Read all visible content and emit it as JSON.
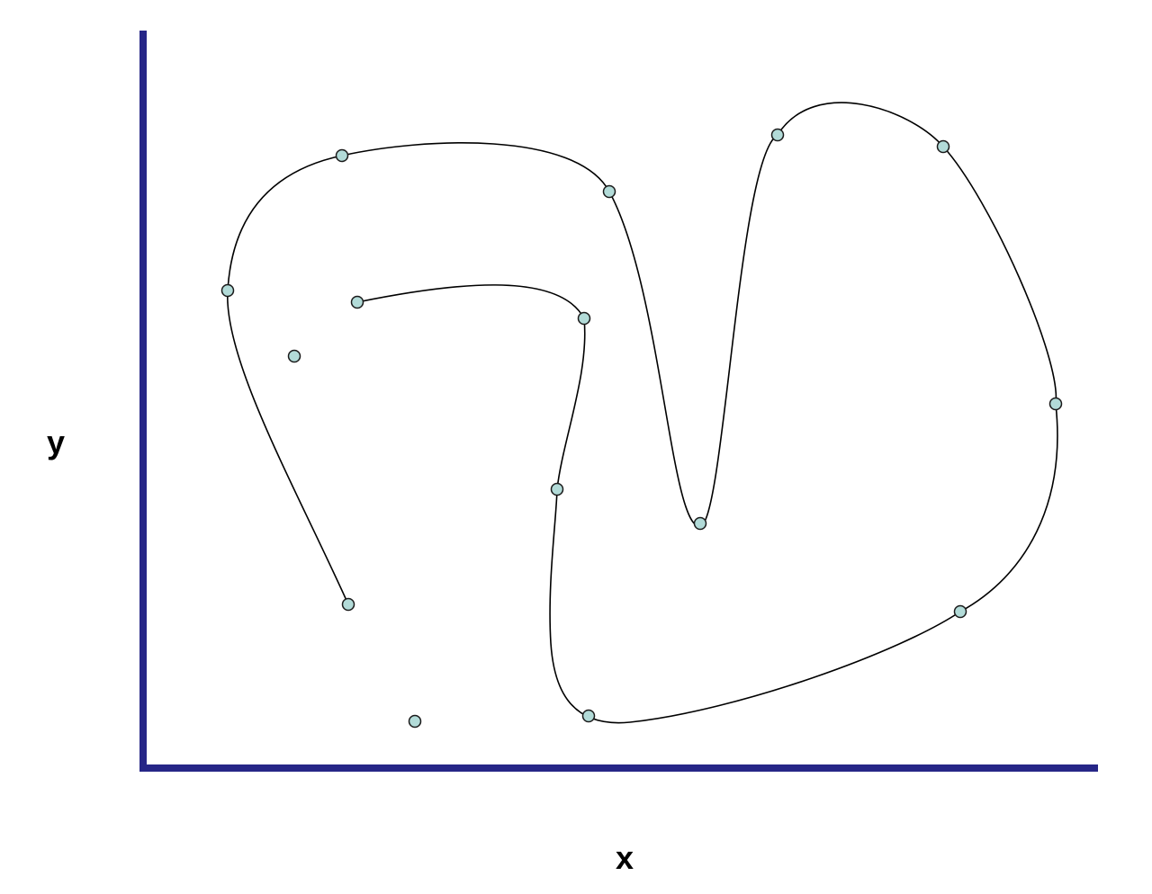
{
  "axes": {
    "x_label": "x",
    "y_label": "y",
    "axis_color": "#262687"
  },
  "curve": {
    "stroke_color": "#000000"
  },
  "points": {
    "fill_color": "#b2dbd8",
    "stroke_color": "#1a1a1a",
    "count": 15,
    "on_curve": 13,
    "off_curve": 2
  }
}
